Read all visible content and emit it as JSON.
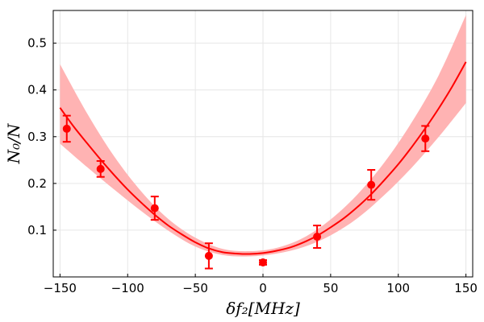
{
  "chart_data": {
    "type": "scatter",
    "title": "",
    "xlabel": "δf₂[MHz]",
    "ylabel": "N₀/N",
    "xlim": [
      -155,
      155
    ],
    "ylim": [
      0,
      0.57
    ],
    "grid": true,
    "x_ticks": [
      -150,
      -100,
      -50,
      0,
      50,
      100,
      150
    ],
    "x_tick_labels": [
      "−150",
      "−100",
      "−50",
      "0",
      "50",
      "100",
      "150"
    ],
    "y_ticks": [
      0.1,
      0.2,
      0.3,
      0.4,
      0.5
    ],
    "y_tick_labels": [
      "0.1",
      "0.2",
      "0.3",
      "0.4",
      "0.5"
    ],
    "series": [
      {
        "name": "data",
        "kind": "points-with-error",
        "color": "#ff0000",
        "points": [
          {
            "x": -145,
            "y": 0.317,
            "err": 0.028
          },
          {
            "x": -120,
            "y": 0.231,
            "err": 0.017
          },
          {
            "x": -80,
            "y": 0.147,
            "err": 0.025
          },
          {
            "x": -40,
            "y": 0.045,
            "err": 0.027
          },
          {
            "x": 0,
            "y": 0.031,
            "err": 0.005
          },
          {
            "x": 40,
            "y": 0.086,
            "err": 0.024
          },
          {
            "x": 80,
            "y": 0.197,
            "err": 0.032
          },
          {
            "x": 120,
            "y": 0.296,
            "err": 0.027
          }
        ]
      },
      {
        "name": "fit",
        "kind": "line",
        "color": "#ff0000",
        "x": [
          -150,
          -140,
          -130,
          -120,
          -110,
          -100,
          -90,
          -80,
          -70,
          -60,
          -50,
          -40,
          -30,
          -20,
          -10,
          0,
          10,
          20,
          30,
          40,
          50,
          60,
          70,
          80,
          90,
          100,
          110,
          120,
          130,
          140,
          150
        ],
        "y": [
          0.362,
          0.322,
          0.286,
          0.251,
          0.218,
          0.187,
          0.159,
          0.133,
          0.11,
          0.091,
          0.074,
          0.061,
          0.053,
          0.05,
          0.049,
          0.051,
          0.056,
          0.063,
          0.074,
          0.088,
          0.106,
          0.126,
          0.15,
          0.177,
          0.208,
          0.241,
          0.278,
          0.318,
          0.361,
          0.408,
          0.46
        ]
      },
      {
        "name": "confidence-band",
        "kind": "band",
        "color": "#ffb3b3",
        "x": [
          -150,
          -130,
          -110,
          -90,
          -70,
          -50,
          -30,
          -10,
          10,
          30,
          50,
          70,
          90,
          110,
          130,
          150
        ],
        "lower": [
          0.285,
          0.235,
          0.187,
          0.141,
          0.099,
          0.065,
          0.047,
          0.044,
          0.05,
          0.064,
          0.089,
          0.126,
          0.176,
          0.234,
          0.3,
          0.372
        ],
        "upper": [
          0.455,
          0.35,
          0.258,
          0.183,
          0.124,
          0.084,
          0.06,
          0.055,
          0.062,
          0.084,
          0.123,
          0.177,
          0.246,
          0.331,
          0.432,
          0.56
        ]
      }
    ]
  }
}
